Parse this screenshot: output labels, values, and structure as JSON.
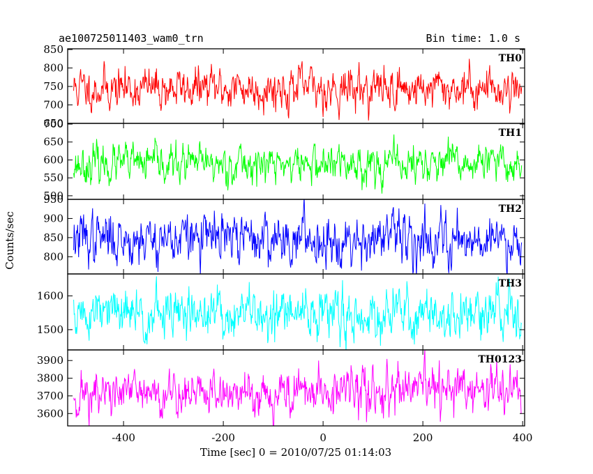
{
  "header": {
    "left": "ae100725011403_wam0_trn",
    "right": "Bin time: 1.0 s"
  },
  "chart_data": {
    "type": "line",
    "xlabel": "Time [sec] 0 = 2010/07/25 01:14:03",
    "ylabel": "Counts/sec",
    "xlim": [
      -512,
      404
    ],
    "xticks": [
      -400,
      -200,
      0,
      200,
      400
    ],
    "x_start": -500,
    "x_end": 398,
    "bin_time": 1.0,
    "grid": false,
    "series": [
      {
        "name": "TH0",
        "color": "#ff0000",
        "ylim": [
          650,
          852
        ],
        "yticks": [
          650,
          700,
          750,
          800,
          850
        ],
        "mean": 745,
        "noise": 30,
        "seed": 11,
        "summary": {
          "mean": 745,
          "typical_min": 690,
          "typical_max": 810
        }
      },
      {
        "name": "TH1",
        "color": "#00ff00",
        "ylim": [
          490,
          702
        ],
        "yticks": [
          500,
          550,
          600,
          650,
          700
        ],
        "mean": 588,
        "noise": 28,
        "seed": 23,
        "summary": {
          "mean": 588,
          "typical_min": 535,
          "typical_max": 650
        }
      },
      {
        "name": "TH2",
        "color": "#0000ff",
        "ylim": [
          755,
          950
        ],
        "yticks": [
          800,
          850,
          900,
          950
        ],
        "mean": 848,
        "noise": 35,
        "seed": 37,
        "summary": {
          "mean": 848,
          "typical_min": 780,
          "typical_max": 925
        }
      },
      {
        "name": "TH3",
        "color": "#00ffff",
        "ylim": [
          1440,
          1665
        ],
        "yticks": [
          1500,
          1600
        ],
        "mean": 1545,
        "noise": 40,
        "seed": 51,
        "summary": {
          "mean": 1545,
          "typical_min": 1465,
          "typical_max": 1635
        }
      },
      {
        "name": "TH0123",
        "color": "#ff00ff",
        "ylim": [
          3530,
          3960
        ],
        "yticks": [
          3600,
          3700,
          3800,
          3900
        ],
        "mean": 3720,
        "noise": 70,
        "seed": 71,
        "trend": 0.06,
        "summary": {
          "mean": 3720,
          "typical_min": 3580,
          "typical_max": 3880
        }
      }
    ]
  }
}
